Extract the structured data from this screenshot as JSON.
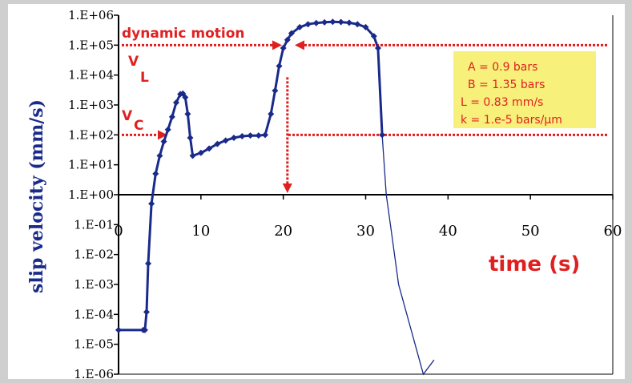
{
  "colors": {
    "background": "#cfcfcf",
    "series": "#1a2a8a",
    "annotation": "#e02020",
    "legend_box": "#f7f07a",
    "ylabel": "#1a2a8a"
  },
  "chart_data": {
    "type": "line",
    "ylabel": "slip velocity (mm/s)",
    "xlabel": "time (s)",
    "y_scale": "log",
    "ylim": [
      1e-06,
      1000000
    ],
    "xlim": [
      0,
      60
    ],
    "x_ticks": [
      "0",
      "10",
      "20",
      "30",
      "40",
      "50",
      "60"
    ],
    "y_ticks": [
      "1.E-06",
      "1.E-05",
      "1.E-04",
      "1.E-03",
      "1.E-02",
      "1.E-01",
      "1.E+00",
      "1.E+01",
      "1.E+02",
      "1.E+03",
      "1.E+04",
      "1.E+05",
      "1.E+06"
    ],
    "grid": false,
    "legend": {
      "position": "top-right",
      "lines": [
        "A = 0.9 bars",
        "B = 1.35 bars",
        "L = 0.83 mm/s",
        "k = 1.e-5 bars/μm"
      ]
    },
    "annotations": {
      "dynamic_motion": "dynamic motion",
      "v_l": "V",
      "v_l_sub": "L",
      "v_c": "V",
      "v_c_sub": "C",
      "v_l_level": 100000,
      "v_c_level": 100,
      "v_l_time": 20.5
    },
    "series": [
      {
        "marker": "diamond",
        "x": [
          0,
          3.0,
          3.2,
          3.4,
          3.6,
          4.0,
          4.5,
          5.0,
          5.5,
          6.0,
          6.5,
          7.0,
          7.5,
          7.8,
          8.1,
          8.4,
          8.7,
          9.0,
          10.0,
          11.0,
          12.0,
          13.0,
          14.0,
          15.0,
          16.0,
          17.0,
          17.8,
          18.5,
          19.0,
          19.5,
          20.0,
          20.5,
          21.0,
          22.0,
          23.0,
          24.0,
          25.0,
          26.0,
          27.0,
          28.0,
          29.0,
          30.0,
          31.0,
          31.5,
          32.0
        ],
        "y": [
          3e-05,
          3e-05,
          3e-05,
          0.00012,
          0.005,
          0.5,
          5,
          20,
          60,
          150,
          400,
          1200,
          2300,
          2400,
          1800,
          500,
          80,
          20,
          25,
          35,
          50,
          65,
          80,
          90,
          95,
          95,
          100,
          500,
          3000,
          20000,
          80000,
          150000,
          250000,
          400000,
          500000,
          550000,
          580000,
          600000,
          590000,
          560000,
          500000,
          400000,
          200000,
          80000,
          100
        ]
      },
      {
        "marker": "none",
        "x": [
          32.0,
          32.5,
          33.0,
          34.0,
          35.0,
          36.0,
          37.0,
          38.3
        ],
        "y": [
          100,
          1,
          0.1,
          0.001,
          0.0001,
          1e-05,
          1e-06,
          3e-06
        ]
      }
    ]
  }
}
